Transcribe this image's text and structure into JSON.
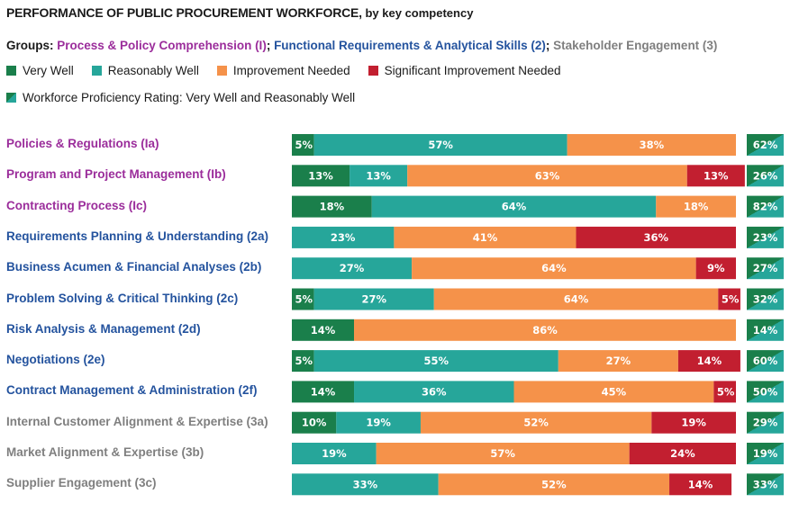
{
  "title": {
    "main": "PERFORMANCE OF PUBLIC PROCUREMENT WORKFORCE,",
    "sub": " by key competency"
  },
  "groups": {
    "prefix": "Groups: ",
    "items": [
      {
        "label": "Process & Policy Comprehension (I)",
        "color": "#9b2d9b",
        "sep": "; "
      },
      {
        "label": "Functional Requirements & Analytical Skills (2)",
        "color": "#24539e",
        "sep": "; "
      },
      {
        "label": "Stakeholder Engagement (3)",
        "color": "#7f7f7f",
        "sep": ""
      }
    ]
  },
  "colors": {
    "very_well": "#1a7f4b",
    "reasonably_well": "#26a69a",
    "improvement_needed": "#f5924a",
    "significant_improvement": "#c21f30",
    "label_text": "#ffffff"
  },
  "chart_data": {
    "type": "bar",
    "orientation": "horizontal",
    "stacked": true,
    "title": "PERFORMANCE OF PUBLIC PROCUREMENT WORKFORCE, by key competency",
    "xlabel": "",
    "ylabel": "",
    "xlim": [
      0,
      100
    ],
    "grid": false,
    "legend_position": "top-left",
    "legend": [
      "Very Well",
      "Reasonably Well",
      "Improvement Needed",
      "Significant Improvement Needed",
      "Workforce Proficiency Rating: Very Well and Reasonably Well"
    ],
    "categories": [
      {
        "label": "Policies & Regulations (Ia)",
        "group": 1
      },
      {
        "label": "Program and Project Management (Ib)",
        "group": 1
      },
      {
        "label": "Contracting Process (Ic)",
        "group": 1
      },
      {
        "label": "Requirements Planning & Understanding (2a)",
        "group": 2
      },
      {
        "label": "Business Acumen & Financial Analyses (2b)",
        "group": 2
      },
      {
        "label": "Problem Solving & Critical Thinking (2c)",
        "group": 2
      },
      {
        "label": "Risk Analysis & Management (2d)",
        "group": 2
      },
      {
        "label": "Negotiations (2e)",
        "group": 2
      },
      {
        "label": "Contract Management & Administration (2f)",
        "group": 2
      },
      {
        "label": "Internal Customer Alignment & Expertise (3a)",
        "group": 3
      },
      {
        "label": "Market Alignment & Expertise (3b)",
        "group": 3
      },
      {
        "label": "Supplier Engagement (3c)",
        "group": 3
      }
    ],
    "series": [
      {
        "name": "Very Well",
        "key": "very_well",
        "values": [
          5,
          13,
          18,
          0,
          0,
          5,
          14,
          5,
          14,
          10,
          0,
          0
        ]
      },
      {
        "name": "Reasonably Well",
        "key": "reasonably_well",
        "values": [
          57,
          13,
          64,
          23,
          27,
          27,
          0,
          55,
          36,
          19,
          19,
          33
        ]
      },
      {
        "name": "Improvement Needed",
        "key": "improvement_needed",
        "values": [
          38,
          63,
          18,
          41,
          64,
          64,
          86,
          27,
          45,
          52,
          57,
          52
        ]
      },
      {
        "name": "Significant Improvement Needed",
        "key": "significant_improvement",
        "values": [
          0,
          13,
          0,
          36,
          9,
          5,
          0,
          14,
          5,
          19,
          24,
          14
        ]
      }
    ],
    "proficiency_rating": {
      "name": "Workforce Proficiency Rating: Very Well and Reasonably Well",
      "values": [
        62,
        26,
        82,
        23,
        27,
        32,
        14,
        60,
        50,
        29,
        19,
        33
      ]
    },
    "value_suffix": "%"
  }
}
